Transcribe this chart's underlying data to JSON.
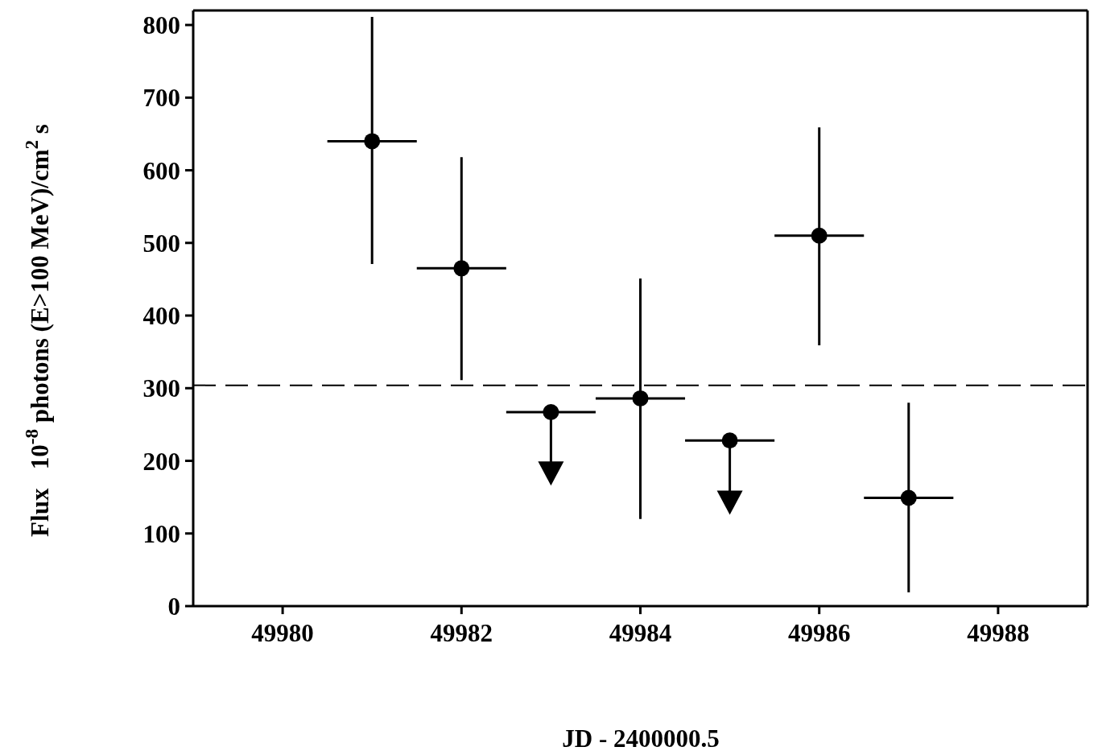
{
  "chart_data": {
    "type": "scatter",
    "xlabel": "JD - 2400000.5",
    "ylabel": "Flux   10$^{-8}$ photons (E>100 MeV)/cm$^{2}$ s",
    "xlim": [
      49979,
      49989
    ],
    "xticks": [
      49980,
      49982,
      49984,
      49986,
      49988
    ],
    "ylim": [
      0,
      820
    ],
    "yticks": [
      0,
      100,
      200,
      300,
      400,
      500,
      600,
      700,
      800
    ],
    "grid": false,
    "legend": false,
    "series": [
      {
        "type": "scatter",
        "color": "#000000",
        "marker": "circle",
        "x": [
          49981,
          49982,
          49983,
          49984,
          49985,
          49986,
          49987
        ],
        "values": [
          640,
          465,
          267,
          286,
          228,
          510,
          149
        ],
        "errors": [
          [
            471,
            811
          ],
          [
            311,
            618
          ],
          [
            197,
            267
          ],
          [
            120,
            451
          ],
          [
            158,
            228
          ],
          [
            359,
            659
          ],
          [
            19,
            280
          ]
        ],
        "xerrors": [
          0.5,
          0.5,
          0.5,
          0.5,
          0.5,
          0.5,
          0.5
        ]
      },
      {
        "type": "scatter",
        "color": "#000000",
        "marker": "triangle",
        "x": [
          49983,
          49985
        ],
        "values": [
          188,
          148
        ]
      }
    ],
    "ref_lines": [
      {
        "axis": "y",
        "value": 304,
        "color": "#000000",
        "line_style": "dashed"
      }
    ]
  }
}
